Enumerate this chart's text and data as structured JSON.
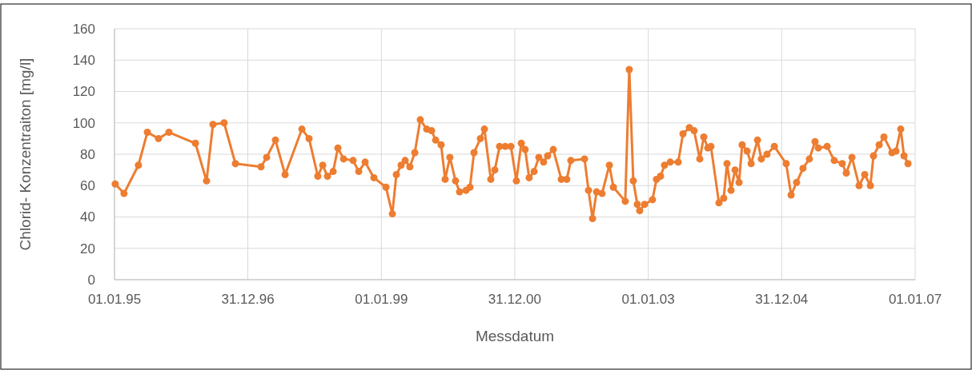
{
  "chart_data": {
    "type": "line",
    "xlabel": "Messdatum",
    "ylabel": "Chlorid- Konzentraiton [mg/l]",
    "x": [
      "1995-01-05",
      "1995-02-22",
      "1995-05-12",
      "1995-06-30",
      "1995-08-30",
      "1995-10-26",
      "1996-03-19",
      "1996-05-19",
      "1996-06-23",
      "1996-08-23",
      "1996-10-24",
      "1997-03-13",
      "1997-04-13",
      "1997-05-31",
      "1997-07-23",
      "1997-10-23",
      "1997-12-01",
      "1998-01-18",
      "1998-02-14",
      "1998-03-12",
      "1998-04-12",
      "1998-05-08",
      "1998-06-08",
      "1998-07-30",
      "1998-08-30",
      "1998-10-04",
      "1998-11-21",
      "1999-01-26",
      "1999-03-02",
      "1999-03-24",
      "1999-04-19",
      "1999-05-11",
      "1999-06-06",
      "1999-07-03",
      "1999-08-02",
      "1999-09-06",
      "1999-10-03",
      "1999-10-25",
      "1999-11-24",
      "1999-12-16",
      "2000-01-11",
      "2000-02-11",
      "2000-03-04",
      "2000-04-08",
      "2000-04-30",
      "2000-05-22",
      "2000-06-26",
      "2000-07-18",
      "2000-08-22",
      "2000-09-13",
      "2000-10-09",
      "2000-11-09",
      "2000-12-10",
      "2001-01-09",
      "2001-02-05",
      "2001-02-26",
      "2001-03-20",
      "2001-04-16",
      "2001-05-12",
      "2001-06-07",
      "2001-06-29",
      "2001-07-30",
      "2001-09-12",
      "2001-10-12",
      "2001-11-03",
      "2002-01-17",
      "2002-02-08",
      "2002-03-02",
      "2002-03-24",
      "2002-04-23",
      "2002-06-02",
      "2002-06-24",
      "2002-08-28",
      "2002-09-19",
      "2002-10-11",
      "2002-11-02",
      "2002-11-15",
      "2002-12-12",
      "2003-01-24",
      "2003-02-15",
      "2003-03-09",
      "2003-03-31",
      "2003-05-01",
      "2003-06-14",
      "2003-07-10",
      "2003-08-14",
      "2003-09-09",
      "2003-10-10",
      "2003-11-01",
      "2003-11-23",
      "2003-12-10",
      "2004-01-23",
      "2004-02-18",
      "2004-03-07",
      "2004-03-29",
      "2004-04-20",
      "2004-05-12",
      "2004-05-29",
      "2004-06-25",
      "2004-07-17",
      "2004-08-21",
      "2004-09-11",
      "2004-10-12",
      "2004-11-21",
      "2005-01-25",
      "2005-02-21",
      "2005-03-23",
      "2005-04-27",
      "2005-06-01",
      "2005-07-02",
      "2005-07-20",
      "2005-09-06",
      "2005-10-15",
      "2005-11-28",
      "2005-12-20",
      "2006-01-20",
      "2006-02-28",
      "2006-03-31",
      "2006-05-01",
      "2006-05-18",
      "2006-06-18",
      "2006-07-14",
      "2006-08-27",
      "2006-09-18",
      "2006-10-14",
      "2006-11-01",
      "2006-11-23"
    ],
    "series": [
      {
        "color": "#ed7d31",
        "values": [
          61,
          55,
          73,
          94,
          90,
          94,
          87,
          63,
          99,
          100,
          74,
          72,
          78,
          89,
          67,
          96,
          90,
          66,
          73,
          66,
          69,
          84,
          77,
          76,
          69,
          75,
          65,
          59,
          42,
          67,
          73,
          76,
          72,
          81,
          102,
          96,
          95,
          89,
          86,
          64,
          78,
          63,
          56,
          57,
          59,
          81,
          90,
          96,
          64,
          70,
          85,
          85,
          85,
          63,
          87,
          83,
          65,
          69,
          78,
          75,
          79,
          83,
          64,
          64,
          76,
          77,
          57,
          39,
          56,
          55,
          73,
          59,
          50,
          134,
          63,
          48,
          44,
          48,
          51,
          64,
          66,
          73,
          75,
          75,
          93,
          97,
          95,
          77,
          91,
          84,
          85,
          49,
          52,
          74,
          57,
          70,
          62,
          86,
          82,
          74,
          89,
          77,
          80,
          85,
          74,
          54,
          62,
          71,
          77,
          88,
          84,
          85,
          76,
          74,
          68,
          78,
          60,
          67,
          60,
          79,
          86,
          91,
          81,
          82,
          96,
          79,
          74
        ]
      }
    ],
    "xlim": [
      "1995-01-01",
      "2007-01-01"
    ],
    "xticks": [
      {
        "value": "1995-01-01",
        "label": "01.01.95"
      },
      {
        "value": "1996-12-31",
        "label": "31.12.96"
      },
      {
        "value": "1999-01-01",
        "label": "01.01.99"
      },
      {
        "value": "2000-12-31",
        "label": "31.12.00"
      },
      {
        "value": "2003-01-01",
        "label": "01.01.03"
      },
      {
        "value": "2004-12-31",
        "label": "31.12.04"
      },
      {
        "value": "2007-01-01",
        "label": "01.01.07"
      }
    ],
    "ylim": [
      0,
      160
    ],
    "yticks": [
      0,
      20,
      40,
      60,
      80,
      100,
      120,
      140,
      160
    ],
    "grid": true,
    "marker": "circle",
    "line_style": "solid"
  }
}
